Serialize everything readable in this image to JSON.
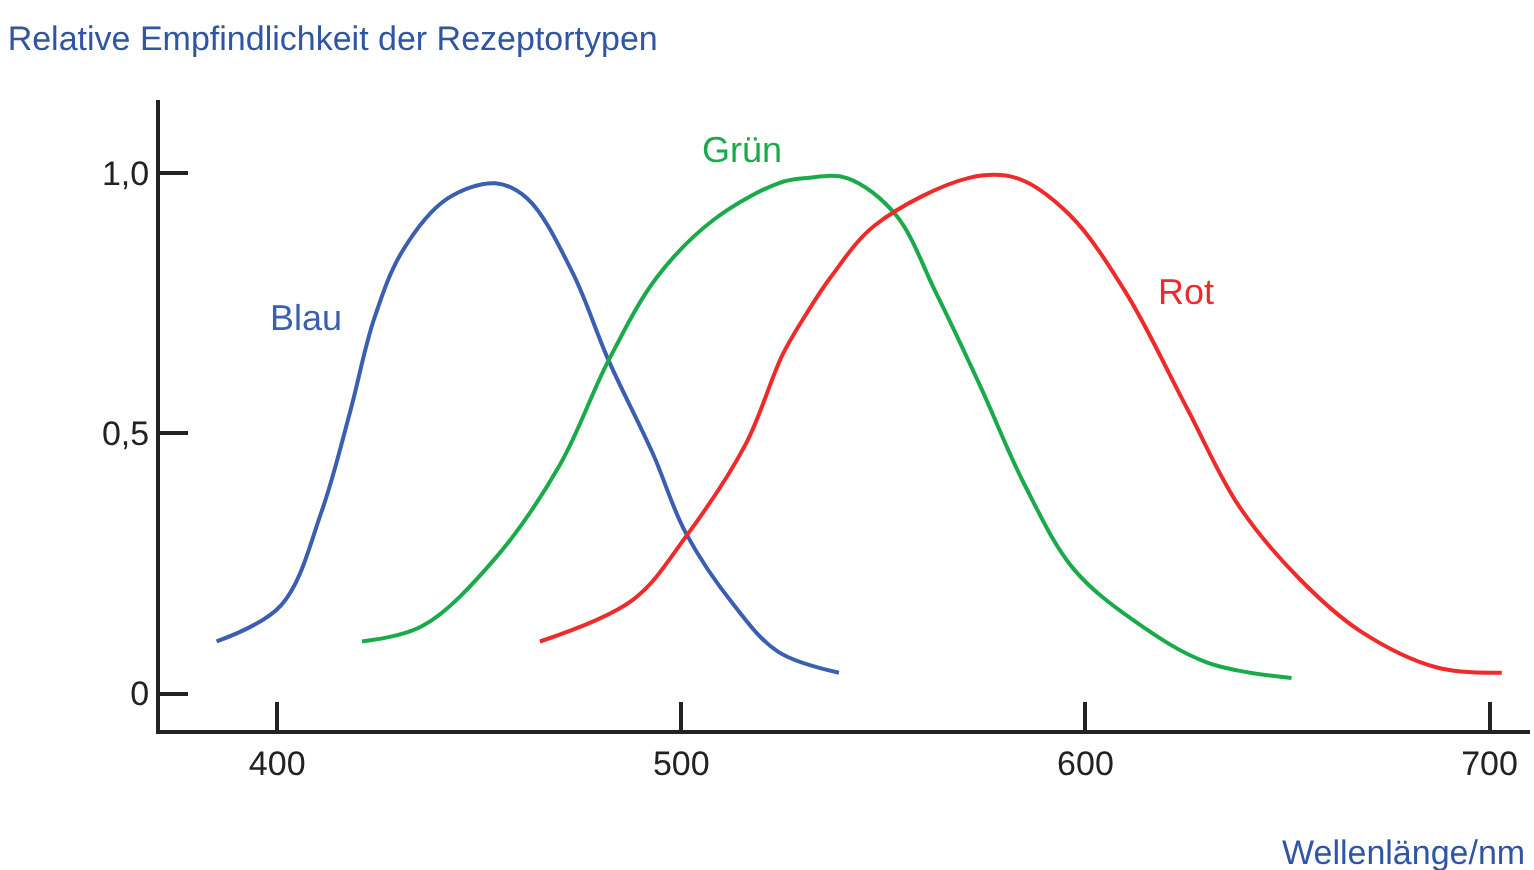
{
  "chart_data": {
    "type": "line",
    "title": "Relative Empfindlichkeit der Rezeptortypen",
    "xlabel": "Wellenlänge/nm",
    "xlim": [
      371,
      710
    ],
    "ylim": [
      -0.07,
      1.14
    ],
    "xticks": [
      400,
      500,
      600,
      700
    ],
    "yticks": [
      {
        "value": 0,
        "label": "0"
      },
      {
        "value": 0.5,
        "label": "0,5"
      },
      {
        "value": 1.0,
        "label": "1,0"
      }
    ],
    "legend": false,
    "marker": "none",
    "line_style": "solid",
    "series": [
      {
        "name": "Blau",
        "color": "#3a5fb0",
        "x": [
          385,
          401,
          411,
          418,
          424,
          431,
          442,
          454,
          462,
          473,
          482,
          493,
          501,
          513,
          524,
          539
        ],
        "values": [
          0.1,
          0.17,
          0.35,
          0.54,
          0.72,
          0.85,
          0.95,
          0.98,
          0.95,
          0.81,
          0.64,
          0.46,
          0.31,
          0.17,
          0.08,
          0.04
        ]
      },
      {
        "name": "Grün",
        "color": "#1aaa4a",
        "x": [
          421,
          436,
          454,
          470,
          482,
          494,
          508,
          524,
          531,
          541,
          553,
          563,
          574,
          585,
          597,
          612,
          630,
          651
        ],
        "values": [
          0.1,
          0.13,
          0.26,
          0.44,
          0.64,
          0.8,
          0.91,
          0.98,
          0.99,
          0.99,
          0.92,
          0.77,
          0.59,
          0.4,
          0.24,
          0.14,
          0.06,
          0.03
        ]
      },
      {
        "name": "Rot",
        "color": "#ee2a2a",
        "x": [
          465,
          488,
          501,
          516,
          525,
          531,
          537,
          548,
          571,
          583,
          596,
          610,
          625,
          638,
          653,
          668,
          687,
          703
        ],
        "values": [
          0.1,
          0.18,
          0.3,
          0.48,
          0.65,
          0.73,
          0.8,
          0.9,
          0.99,
          0.99,
          0.92,
          0.77,
          0.55,
          0.36,
          0.22,
          0.12,
          0.05,
          0.04
        ]
      }
    ]
  }
}
